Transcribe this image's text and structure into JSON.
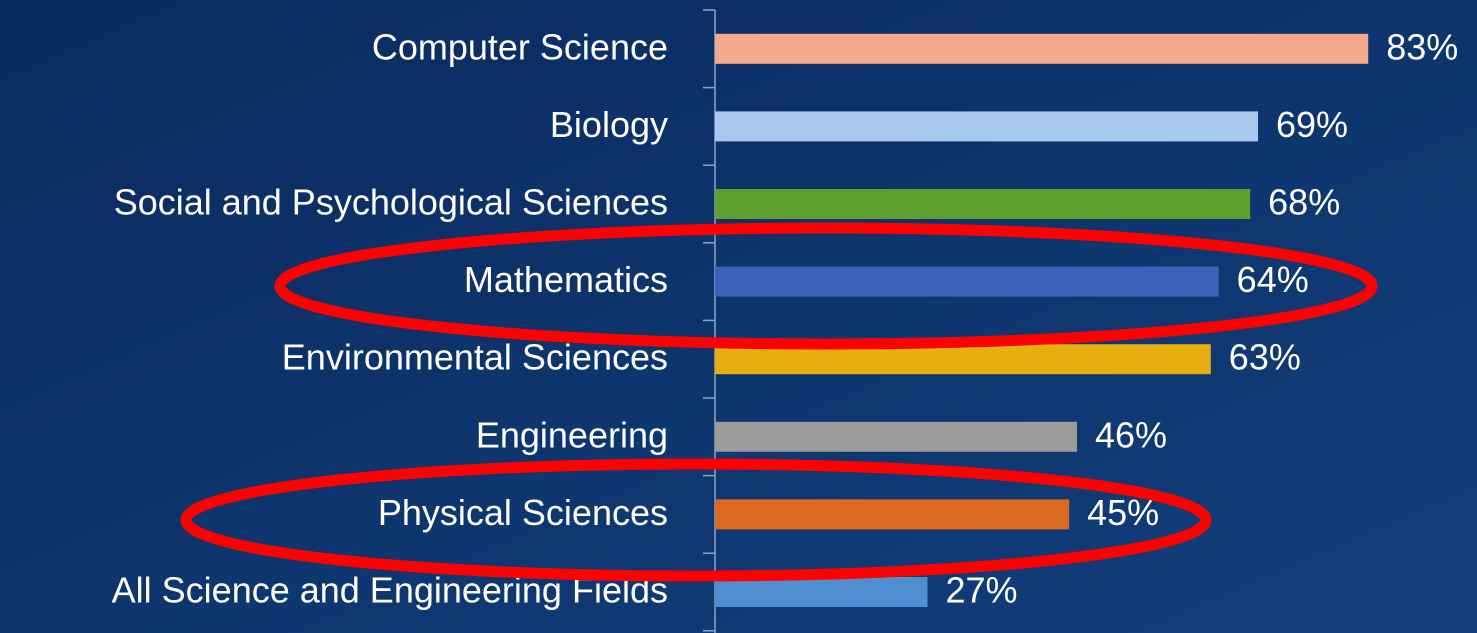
{
  "chart_data": {
    "type": "bar",
    "orientation": "horizontal",
    "categories": [
      "Computer Science",
      "Biology",
      "Social and Psychological Sciences",
      "Mathematics",
      "Environmental Sciences",
      "Engineering",
      "Physical Sciences",
      "All Science and Engineering Fields"
    ],
    "values": [
      83,
      69,
      68,
      64,
      63,
      46,
      45,
      27
    ],
    "value_labels": [
      "83%",
      "69%",
      "68%",
      "64%",
      "63%",
      "46%",
      "45%",
      "27%"
    ],
    "colors": [
      "#f4a98c",
      "#a8c8ee",
      "#5e9f2e",
      "#3a62b8",
      "#e6ae0e",
      "#9b9b9b",
      "#da6a22",
      "#4f8fd1"
    ],
    "xlim": [
      0,
      100
    ]
  }
}
